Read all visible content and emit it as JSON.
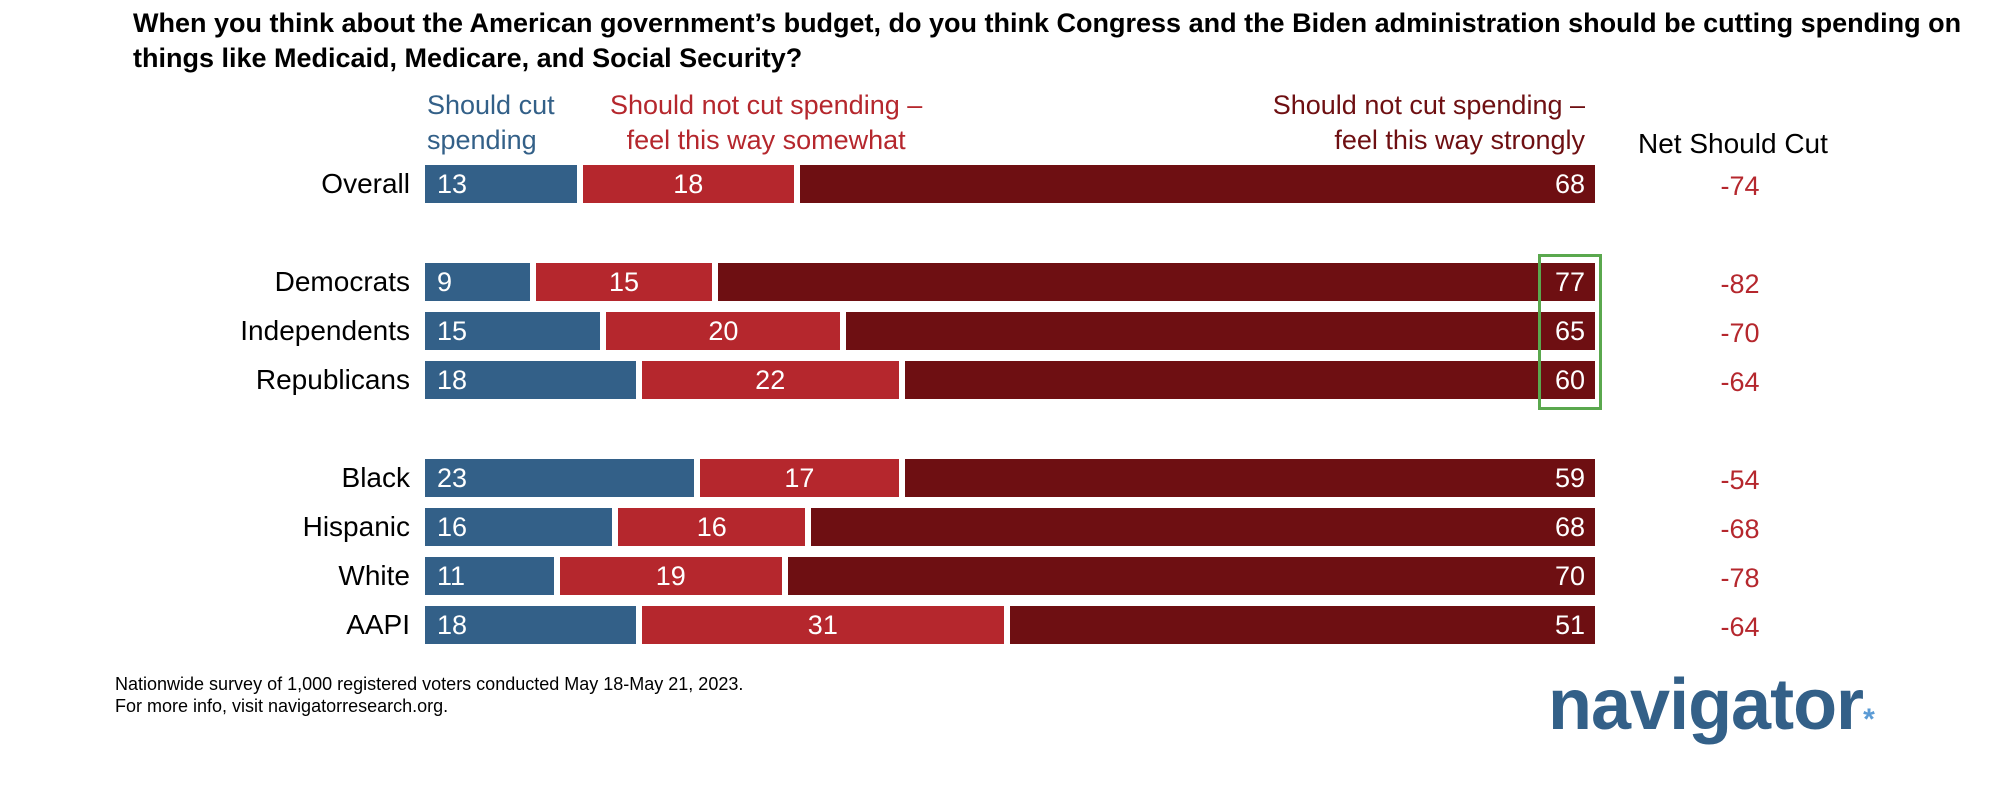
{
  "chart_data": {
    "type": "bar",
    "stacked": true,
    "orientation": "horizontal",
    "title": "When you think about the American government’s budget, do you think Congress and the Biden administration should be cutting spending on things like Medicaid, Medicare, and Social Security?",
    "categories": [
      "Overall",
      "Democrats",
      "Independents",
      "Republicans",
      "Black",
      "Hispanic",
      "White",
      "AAPI"
    ],
    "series": [
      {
        "name": "Should cut spending",
        "color": "#336088",
        "values": [
          13,
          9,
          15,
          18,
          23,
          16,
          11,
          18
        ]
      },
      {
        "name": "Should not cut spending – feel this way somewhat",
        "color": "#b5272d",
        "values": [
          18,
          15,
          20,
          22,
          17,
          16,
          19,
          31
        ]
      },
      {
        "name": "Should not cut spending – feel this way strongly",
        "color": "#6e0f12",
        "values": [
          68,
          77,
          65,
          60,
          59,
          68,
          70,
          51
        ]
      }
    ],
    "net_label": "Net Should Cut",
    "net": [
      "-74",
      "-82",
      "-70",
      "-64",
      "-54",
      "-68",
      "-78",
      "-64"
    ],
    "highlight": [
      "Democrats",
      "Independents",
      "Republicans"
    ]
  },
  "headers": {
    "cut": "Should cut\nspending",
    "somewhat": "Should not cut spending –\nfeel this way somewhat",
    "strongly": "Should not cut spending –\nfeel this way strongly"
  },
  "footnote": [
    "Nationwide survey of 1,000 registered voters conducted May 18-May 21, 2023.",
    "For more info, visit navigatorresearch.org."
  ],
  "logo": "navigator"
}
